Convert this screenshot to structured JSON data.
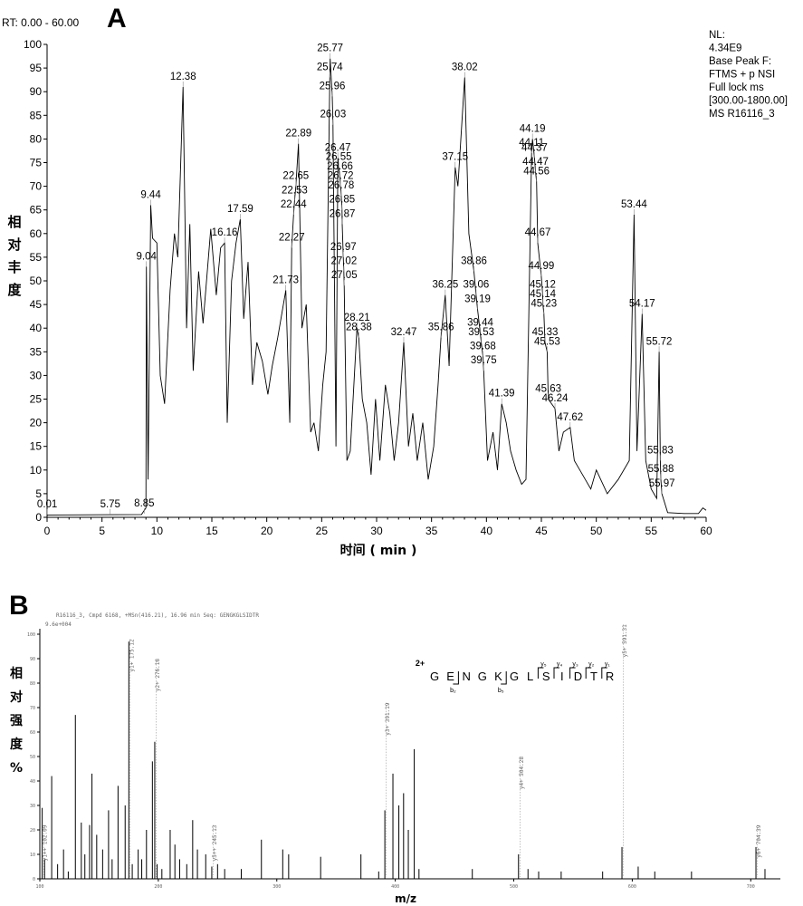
{
  "panel_a": {
    "letter": "A",
    "rt_range": "RT: 0.00 - 60.00",
    "info_lines": [
      "NL:",
      "4.34E9",
      "Base Peak F:",
      "FTMS + p NSI",
      "Full lock ms",
      "[300.00-1800.00]",
      "MS R16116_3"
    ],
    "ylabel_chars": [
      "相",
      "对",
      "丰",
      "度"
    ],
    "xlabel": "时间 ( min )"
  },
  "panel_b": {
    "letter": "B",
    "header": "R16116_3, Cmpd 6168, +MSn(416.21), 16.96 min  Seq: GENGKGLSIDTR",
    "intensity": "9.6e+004",
    "charge": "2+",
    "peptide": [
      "G",
      "E",
      "N",
      "G",
      "K",
      "G",
      "L",
      "S",
      "I",
      "D",
      "T",
      "R"
    ],
    "y_ions": [
      "y₅",
      "y₄",
      "y₃",
      "y₂",
      "y₁"
    ],
    "b_ions": [
      "b₂",
      "b₅"
    ],
    "ylabel_chars": [
      "相",
      "对",
      "强",
      "度",
      "%"
    ],
    "xlabel": "m/z",
    "ion_labels": [
      "y1+ 175.12",
      "y1++ 102.09",
      "y2+ 276.16",
      "y5++ 245.13",
      "y3+ 391.19",
      "y4+ 504.28",
      "y5+ 591.31",
      "y6+ 704.39"
    ]
  },
  "chart_data": [
    {
      "type": "line",
      "title": "",
      "xlabel": "时间 ( min )",
      "ylabel": "相对丰度",
      "xlim": [
        0,
        60
      ],
      "ylim": [
        0,
        100
      ],
      "xticks": [
        0,
        5,
        10,
        15,
        20,
        25,
        30,
        35,
        40,
        45,
        50,
        55,
        60
      ],
      "yticks": [
        0,
        5,
        10,
        15,
        20,
        25,
        30,
        35,
        40,
        45,
        50,
        55,
        60,
        65,
        70,
        75,
        80,
        85,
        90,
        95,
        100
      ],
      "trace": [
        [
          0,
          0.5
        ],
        [
          8.6,
          0.6
        ],
        [
          9.0,
          2
        ],
        [
          9.04,
          53
        ],
        [
          9.2,
          8
        ],
        [
          9.44,
          66
        ],
        [
          9.6,
          59
        ],
        [
          10.0,
          58
        ],
        [
          10.3,
          30
        ],
        [
          10.7,
          24
        ],
        [
          11.2,
          48
        ],
        [
          11.6,
          60
        ],
        [
          11.9,
          55
        ],
        [
          12.38,
          91
        ],
        [
          12.7,
          40
        ],
        [
          13.0,
          62
        ],
        [
          13.3,
          31
        ],
        [
          13.8,
          52
        ],
        [
          14.2,
          41
        ],
        [
          14.9,
          61
        ],
        [
          15.4,
          47
        ],
        [
          15.8,
          57
        ],
        [
          16.16,
          58
        ],
        [
          16.4,
          20
        ],
        [
          16.8,
          50
        ],
        [
          17.2,
          58
        ],
        [
          17.59,
          63
        ],
        [
          17.9,
          42
        ],
        [
          18.3,
          54
        ],
        [
          18.7,
          28
        ],
        [
          19.1,
          37
        ],
        [
          19.6,
          33
        ],
        [
          20.1,
          26
        ],
        [
          20.5,
          32
        ],
        [
          21.0,
          38
        ],
        [
          21.73,
          48
        ],
        [
          22.1,
          20
        ],
        [
          22.27,
          57
        ],
        [
          22.44,
          64
        ],
        [
          22.53,
          67
        ],
        [
          22.65,
          70
        ],
        [
          22.89,
          79
        ],
        [
          23.2,
          40
        ],
        [
          23.6,
          45
        ],
        [
          24.0,
          18
        ],
        [
          24.3,
          20
        ],
        [
          24.7,
          14
        ],
        [
          25.1,
          28
        ],
        [
          25.4,
          35
        ],
        [
          25.74,
          93
        ],
        [
          25.77,
          97
        ],
        [
          25.96,
          89
        ],
        [
          26.03,
          83
        ],
        [
          26.3,
          15
        ],
        [
          26.47,
          76
        ],
        [
          26.55,
          74
        ],
        [
          26.66,
          72
        ],
        [
          26.72,
          70
        ],
        [
          26.78,
          68
        ],
        [
          26.85,
          65
        ],
        [
          26.87,
          62
        ],
        [
          26.97,
          55
        ],
        [
          27.02,
          52
        ],
        [
          27.05,
          49
        ],
        [
          27.3,
          12
        ],
        [
          27.6,
          14
        ],
        [
          28.21,
          40
        ],
        [
          28.38,
          38
        ],
        [
          28.7,
          25
        ],
        [
          29.1,
          20
        ],
        [
          29.5,
          9
        ],
        [
          29.9,
          25
        ],
        [
          30.3,
          12
        ],
        [
          30.8,
          28
        ],
        [
          31.2,
          22
        ],
        [
          31.6,
          12
        ],
        [
          32.0,
          20
        ],
        [
          32.47,
          37
        ],
        [
          32.9,
          15
        ],
        [
          33.3,
          22
        ],
        [
          33.7,
          12
        ],
        [
          34.2,
          20
        ],
        [
          34.7,
          8
        ],
        [
          35.2,
          15
        ],
        [
          35.6,
          28
        ],
        [
          35.86,
          38
        ],
        [
          36.25,
          47
        ],
        [
          36.6,
          32
        ],
        [
          37.15,
          74
        ],
        [
          37.4,
          70
        ],
        [
          38.02,
          93
        ],
        [
          38.4,
          60
        ],
        [
          38.86,
          52
        ],
        [
          39.06,
          47
        ],
        [
          39.19,
          44
        ],
        [
          39.44,
          39
        ],
        [
          39.53,
          37
        ],
        [
          39.68,
          34
        ],
        [
          39.75,
          31
        ],
        [
          40.1,
          12
        ],
        [
          40.6,
          18
        ],
        [
          41.0,
          10
        ],
        [
          41.39,
          24
        ],
        [
          41.8,
          20
        ],
        [
          42.2,
          14
        ],
        [
          42.7,
          10
        ],
        [
          43.2,
          7
        ],
        [
          43.6,
          8
        ],
        [
          44.11,
          77
        ],
        [
          44.19,
          80
        ],
        [
          44.37,
          76
        ],
        [
          44.47,
          73
        ],
        [
          44.56,
          71
        ],
        [
          44.67,
          58
        ],
        [
          44.99,
          51
        ],
        [
          45.12,
          47
        ],
        [
          45.14,
          45
        ],
        [
          45.23,
          43
        ],
        [
          45.33,
          37
        ],
        [
          45.53,
          35
        ],
        [
          45.63,
          25
        ],
        [
          46.24,
          23
        ],
        [
          46.6,
          14
        ],
        [
          47.0,
          18
        ],
        [
          47.62,
          19
        ],
        [
          48.0,
          12
        ],
        [
          48.5,
          10
        ],
        [
          49.0,
          8
        ],
        [
          49.5,
          6
        ],
        [
          50.0,
          10
        ],
        [
          51.0,
          5
        ],
        [
          52.0,
          8
        ],
        [
          53.0,
          12
        ],
        [
          53.44,
          64
        ],
        [
          53.7,
          14
        ],
        [
          54.17,
          43
        ],
        [
          54.5,
          12
        ],
        [
          55.0,
          6
        ],
        [
          55.5,
          4
        ],
        [
          55.72,
          35
        ],
        [
          55.83,
          12
        ],
        [
          55.88,
          8
        ],
        [
          55.97,
          5
        ],
        [
          56.5,
          1
        ],
        [
          58.0,
          0.8
        ],
        [
          59.3,
          0.8
        ],
        [
          59.7,
          2
        ],
        [
          60.0,
          1.5
        ]
      ],
      "peak_labels": [
        {
          "text": "0.01",
          "x": 0.01,
          "y": 0.6
        },
        {
          "text": "5.75",
          "x": 5.75,
          "y": 0.6
        },
        {
          "text": "8.85",
          "x": 8.85,
          "y": 0.8
        },
        {
          "text": "9.04",
          "x": 9.04,
          "y": 53
        },
        {
          "text": "9.44",
          "x": 9.44,
          "y": 66
        },
        {
          "text": "12.38",
          "x": 12.38,
          "y": 91
        },
        {
          "text": "16.16",
          "x": 16.16,
          "y": 58
        },
        {
          "text": "17.59",
          "x": 17.59,
          "y": 63
        },
        {
          "text": "21.73",
          "x": 21.73,
          "y": 48
        },
        {
          "text": "22.27",
          "x": 22.27,
          "y": 57
        },
        {
          "text": "22.44",
          "x": 22.44,
          "y": 64
        },
        {
          "text": "22.53",
          "x": 22.53,
          "y": 67
        },
        {
          "text": "22.65",
          "x": 22.65,
          "y": 70
        },
        {
          "text": "22.89",
          "x": 22.89,
          "y": 79
        },
        {
          "text": "25.74",
          "x": 25.74,
          "y": 93
        },
        {
          "text": "25.77",
          "x": 25.77,
          "y": 97
        },
        {
          "text": "25.96",
          "x": 25.96,
          "y": 89
        },
        {
          "text": "26.03",
          "x": 26.03,
          "y": 83
        },
        {
          "text": "26.47",
          "x": 26.47,
          "y": 76
        },
        {
          "text": "26.55",
          "x": 26.55,
          "y": 74
        },
        {
          "text": "26.66",
          "x": 26.66,
          "y": 72
        },
        {
          "text": "26.72",
          "x": 26.72,
          "y": 70
        },
        {
          "text": "26.78",
          "x": 26.78,
          "y": 68
        },
        {
          "text": "26.85",
          "x": 26.85,
          "y": 65
        },
        {
          "text": "26.87",
          "x": 26.87,
          "y": 62
        },
        {
          "text": "26.97",
          "x": 26.97,
          "y": 55
        },
        {
          "text": "27.02",
          "x": 27.02,
          "y": 52
        },
        {
          "text": "27.05",
          "x": 27.05,
          "y": 49
        },
        {
          "text": "28.21",
          "x": 28.21,
          "y": 40
        },
        {
          "text": "28.38",
          "x": 28.38,
          "y": 38
        },
        {
          "text": "32.47",
          "x": 32.47,
          "y": 37
        },
        {
          "text": "35.86",
          "x": 35.86,
          "y": 38
        },
        {
          "text": "36.25",
          "x": 36.25,
          "y": 47
        },
        {
          "text": "37.15",
          "x": 37.15,
          "y": 74
        },
        {
          "text": "38.02",
          "x": 38.02,
          "y": 93
        },
        {
          "text": "38.86",
          "x": 38.86,
          "y": 52
        },
        {
          "text": "39.06",
          "x": 39.06,
          "y": 47
        },
        {
          "text": "39.19",
          "x": 39.19,
          "y": 44
        },
        {
          "text": "39.44",
          "x": 39.44,
          "y": 39
        },
        {
          "text": "39.53",
          "x": 39.53,
          "y": 37
        },
        {
          "text": "39.68",
          "x": 39.68,
          "y": 34
        },
        {
          "text": "39.75",
          "x": 39.75,
          "y": 31
        },
        {
          "text": "41.39",
          "x": 41.39,
          "y": 24
        },
        {
          "text": "44.11",
          "x": 44.11,
          "y": 77
        },
        {
          "text": "44.19",
          "x": 44.19,
          "y": 80
        },
        {
          "text": "44.37",
          "x": 44.37,
          "y": 76
        },
        {
          "text": "44.47",
          "x": 44.47,
          "y": 73
        },
        {
          "text": "44.56",
          "x": 44.56,
          "y": 71
        },
        {
          "text": "44.67",
          "x": 44.67,
          "y": 58
        },
        {
          "text": "44.99",
          "x": 44.99,
          "y": 51
        },
        {
          "text": "45.12",
          "x": 45.12,
          "y": 47
        },
        {
          "text": "45.14",
          "x": 45.14,
          "y": 45
        },
        {
          "text": "45.23",
          "x": 45.23,
          "y": 43
        },
        {
          "text": "45.33",
          "x": 45.33,
          "y": 37
        },
        {
          "text": "45.53",
          "x": 45.53,
          "y": 35
        },
        {
          "text": "45.63",
          "x": 45.63,
          "y": 25
        },
        {
          "text": "46.24",
          "x": 46.24,
          "y": 23
        },
        {
          "text": "47.62",
          "x": 47.62,
          "y": 19
        },
        {
          "text": "53.44",
          "x": 53.44,
          "y": 64
        },
        {
          "text": "54.17",
          "x": 54.17,
          "y": 43
        },
        {
          "text": "55.72",
          "x": 55.72,
          "y": 35
        },
        {
          "text": "55.83",
          "x": 55.83,
          "y": 12
        },
        {
          "text": "55.88",
          "x": 55.88,
          "y": 8
        },
        {
          "text": "55.97",
          "x": 55.97,
          "y": 5
        }
      ]
    },
    {
      "type": "bar",
      "title": "",
      "xlabel": "m/z",
      "ylabel": "相对强度%",
      "xlim": [
        100,
        725
      ],
      "ylim": [
        0,
        100
      ],
      "xticks": [
        100,
        200,
        300,
        400,
        500,
        600,
        700
      ],
      "yticks": [
        0,
        10,
        20,
        30,
        40,
        50,
        60,
        70,
        80,
        90,
        100
      ],
      "peaks": [
        [
          102,
          29
        ],
        [
          104,
          8
        ],
        [
          110,
          42
        ],
        [
          115,
          6
        ],
        [
          120,
          12
        ],
        [
          124,
          3
        ],
        [
          130,
          67
        ],
        [
          135,
          23
        ],
        [
          138,
          10
        ],
        [
          142,
          22
        ],
        [
          144,
          43
        ],
        [
          148,
          18
        ],
        [
          153,
          12
        ],
        [
          158,
          28
        ],
        [
          161,
          8
        ],
        [
          166,
          38
        ],
        [
          172,
          30
        ],
        [
          175.12,
          97
        ],
        [
          178,
          6
        ],
        [
          183,
          12
        ],
        [
          186,
          8
        ],
        [
          190,
          20
        ],
        [
          195,
          48
        ],
        [
          197,
          56
        ],
        [
          199,
          6
        ],
        [
          203,
          4
        ],
        [
          210,
          20
        ],
        [
          214,
          14
        ],
        [
          218,
          8
        ],
        [
          224,
          6
        ],
        [
          229,
          24
        ],
        [
          233,
          12
        ],
        [
          240,
          10
        ],
        [
          245.13,
          5
        ],
        [
          250,
          6
        ],
        [
          256,
          4
        ],
        [
          270,
          4
        ],
        [
          287,
          16
        ],
        [
          305,
          12
        ],
        [
          310,
          10
        ],
        [
          337,
          9
        ],
        [
          371,
          10
        ],
        [
          386,
          3
        ],
        [
          391.19,
          28
        ],
        [
          398,
          43
        ],
        [
          403,
          30
        ],
        [
          407,
          35
        ],
        [
          411,
          20
        ],
        [
          416,
          53
        ],
        [
          420,
          4
        ],
        [
          465,
          4
        ],
        [
          504,
          10
        ],
        [
          512,
          4
        ],
        [
          521,
          3
        ],
        [
          540,
          3
        ],
        [
          575,
          3
        ],
        [
          591.31,
          13
        ],
        [
          605,
          5
        ],
        [
          619,
          3
        ],
        [
          650,
          3
        ],
        [
          704.39,
          13
        ],
        [
          712,
          4
        ]
      ]
    }
  ]
}
